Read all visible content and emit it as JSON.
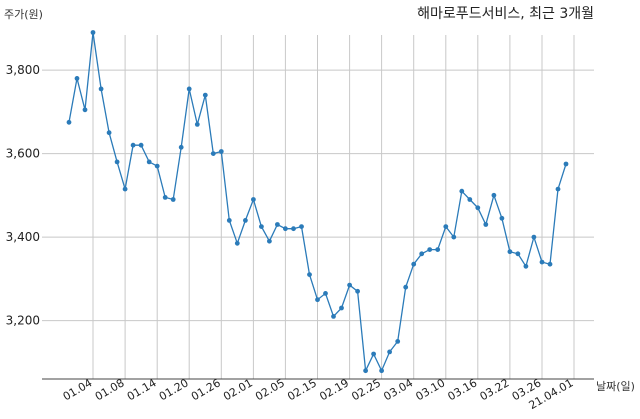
{
  "chart_data": {
    "type": "line",
    "title": "해마로푸드서비스, 최근 3개월",
    "ylabel": "주가(원)",
    "xlabel": "날짜(일)",
    "ylim": [
      3060,
      3920
    ],
    "yticks": [
      3200,
      3400,
      3600,
      3800
    ],
    "ytick_labels": [
      "3,200",
      "3,400",
      "3,600",
      "3,800"
    ],
    "xtick_labels": [
      "01.04",
      "01.08",
      "01.14",
      "01.20",
      "01.26",
      "02.01",
      "02.05",
      "02.15",
      "02.19",
      "02.25",
      "03.04",
      "03.10",
      "03.16",
      "03.22",
      "03.26",
      "21.04.01"
    ],
    "xtick_index": [
      3,
      7,
      11,
      15,
      19,
      23,
      27,
      31,
      35,
      39,
      43,
      47,
      51,
      55,
      59,
      63
    ],
    "grid": true,
    "color": "#2b7bb9",
    "series": [
      {
        "values": [
          3675,
          3780,
          3705,
          3890,
          3755,
          3650,
          3580,
          3515,
          3620,
          3620,
          3580,
          3570,
          3495,
          3490,
          3615,
          3755,
          3670,
          3740,
          3600,
          3605,
          3440,
          3385,
          3440,
          3490,
          3425,
          3390,
          3430,
          3420,
          3420,
          3425,
          3310,
          3250,
          3265,
          3210,
          3230,
          3285,
          3270,
          3080,
          3120,
          3080,
          3125,
          3150,
          3280,
          3335,
          3360,
          3370,
          3370,
          3425,
          3400,
          3510,
          3490,
          3470,
          3430,
          3500,
          3445,
          3365,
          3360,
          3330,
          3400,
          3340,
          3335,
          3515,
          3575
        ]
      }
    ]
  }
}
